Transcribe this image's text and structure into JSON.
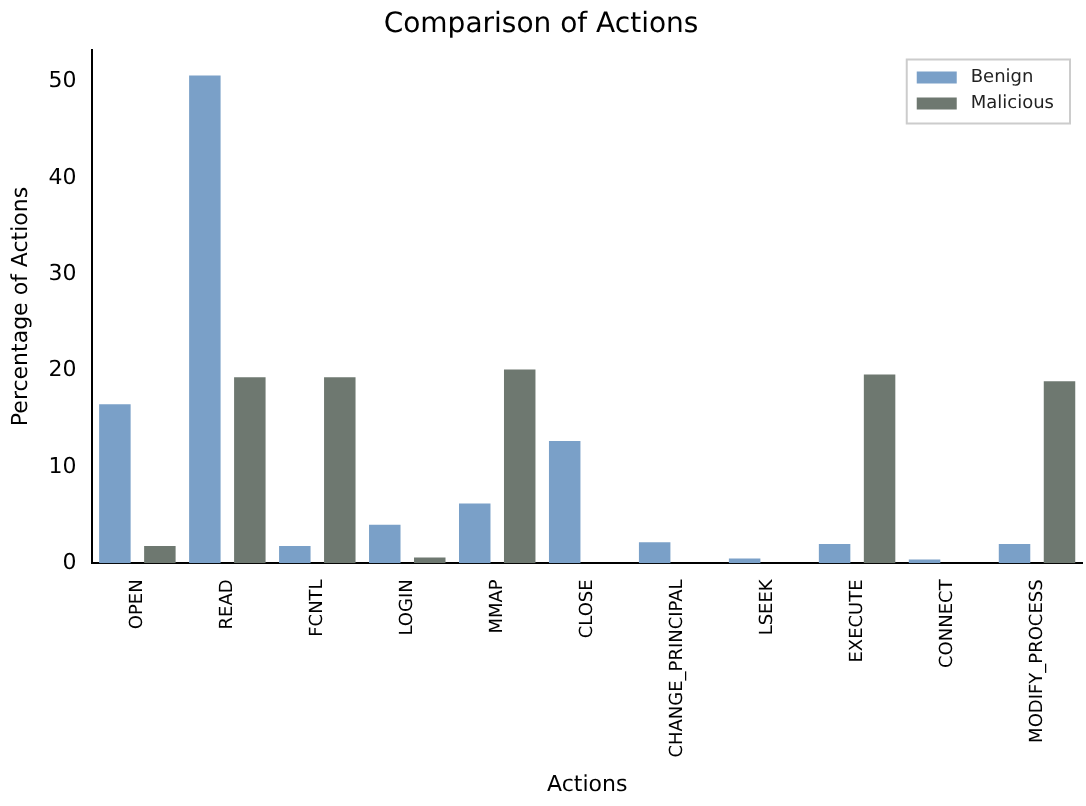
{
  "chart_data": {
    "type": "bar",
    "title": "Comparison of Actions",
    "xlabel": "Actions",
    "ylabel": "Percentage of Actions",
    "categories": [
      "OPEN",
      "READ",
      "FCNTL",
      "LOGIN",
      "MMAP",
      "CLOSE",
      "CHANGE_PRINCIPAL",
      "LSEEK",
      "EXECUTE",
      "CONNECT",
      "MODIFY_PROCESS"
    ],
    "series": [
      {
        "name": "Benign",
        "color": "#7aa0c8",
        "values": [
          16.5,
          50.6,
          1.8,
          4.0,
          6.2,
          12.7,
          2.2,
          0.5,
          2.0,
          0.4,
          2.0
        ]
      },
      {
        "name": "Malicious",
        "color": "#6e7870",
        "values": [
          1.8,
          19.3,
          19.3,
          0.6,
          20.1,
          0,
          0,
          0,
          19.6,
          0,
          18.9
        ]
      }
    ],
    "ylim": [
      0,
      53.3
    ],
    "yticks": [
      0,
      10,
      20,
      30,
      40,
      50
    ],
    "grid": false,
    "legend": "top right"
  }
}
